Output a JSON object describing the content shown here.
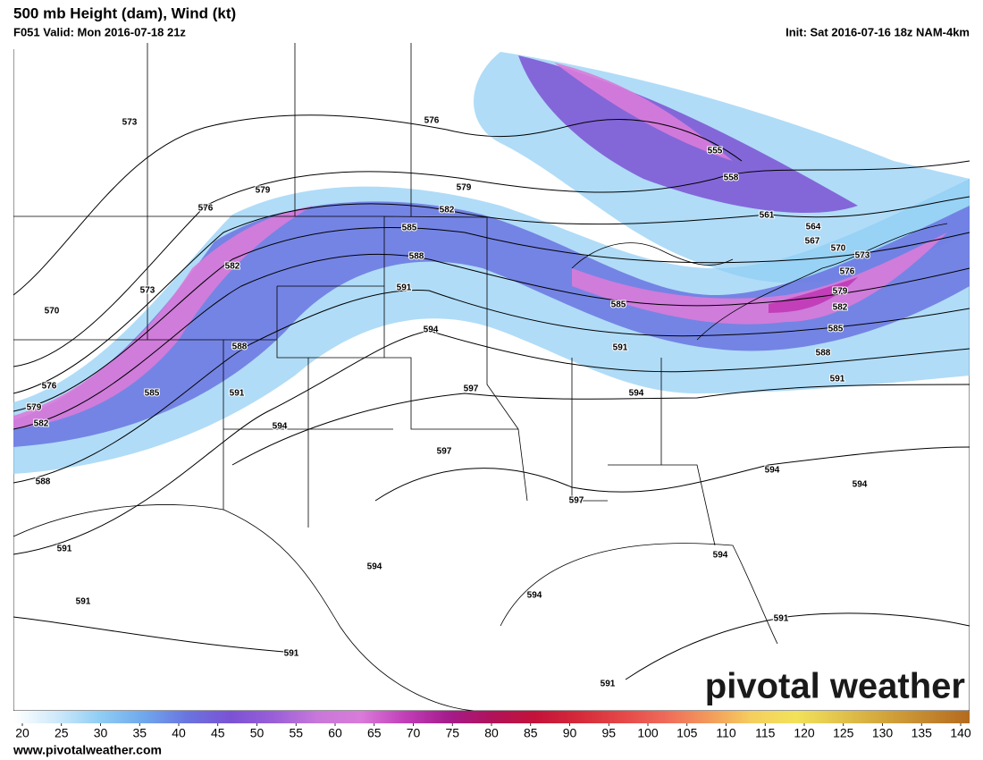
{
  "header": {
    "title": "500 mb Height (dam), Wind (kt)",
    "valid": "F051 Valid: Mon 2016-07-18 21z",
    "init": "Init: Sat 2016-07-16 18z NAM-4km"
  },
  "height_contours": {
    "labels": [
      573,
      576,
      579,
      576,
      579,
      582,
      585,
      588,
      591,
      582,
      573,
      570,
      588,
      585,
      591,
      576,
      579,
      582,
      588,
      594,
      594,
      597,
      597,
      591,
      585,
      594,
      555,
      558,
      561,
      564,
      567,
      570,
      573,
      576,
      579,
      582,
      585,
      588,
      591,
      594,
      594,
      597,
      594,
      594,
      594,
      591,
      591,
      591,
      591,
      591
    ]
  },
  "colorbar": {
    "lim": [
      20,
      140
    ],
    "ticks": [
      20,
      25,
      30,
      35,
      40,
      45,
      50,
      55,
      60,
      65,
      70,
      75,
      80,
      85,
      90,
      95,
      100,
      105,
      110,
      115,
      120,
      125,
      130,
      135,
      140
    ],
    "colors": [
      "#ffffff",
      "#cfe9fa",
      "#8fcdf4",
      "#6fa8ec",
      "#6a74e0",
      "#7b52d4",
      "#9a5fd8",
      "#c878da",
      "#d97bd9",
      "#c23fb9",
      "#a51c8c",
      "#b0125a",
      "#c4123a",
      "#d42a3a",
      "#e54747",
      "#ef6a5a",
      "#f39a5c",
      "#f5cf5e",
      "#f2e25a",
      "#e2c44c",
      "#d3a63c",
      "#c4882e",
      "#b46a1e"
    ]
  },
  "watermark": "pivotal weather",
  "footer": "www.pivotalweather.com"
}
